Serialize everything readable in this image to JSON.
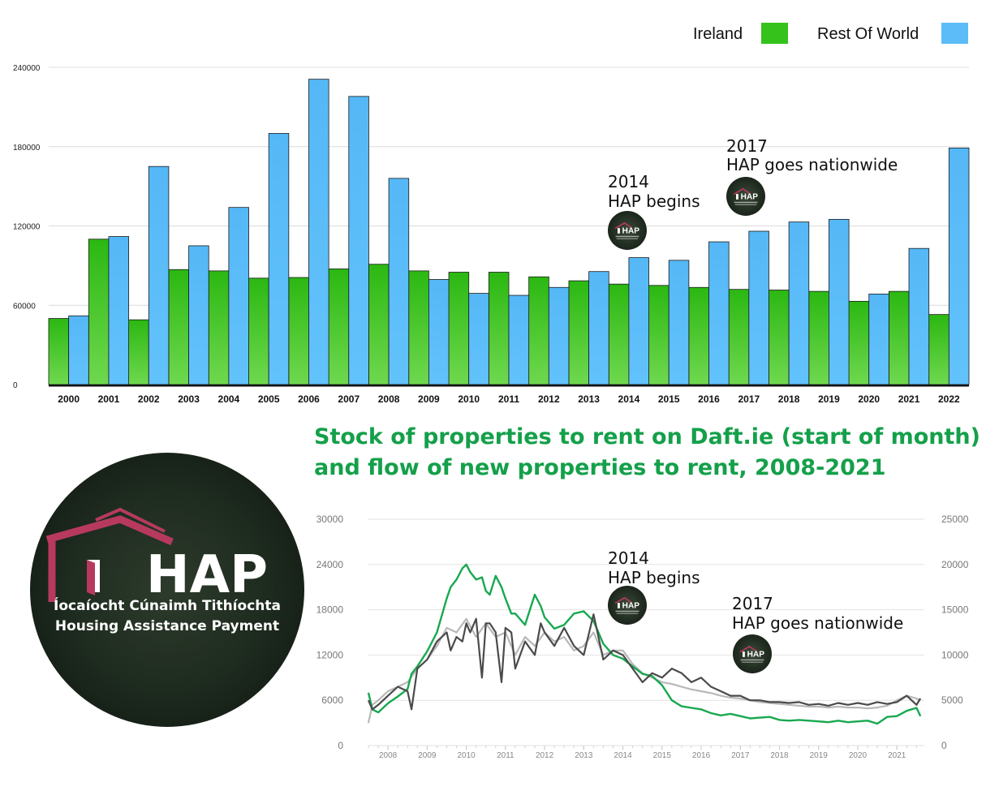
{
  "chart_data": [
    {
      "type": "bar",
      "title": "",
      "xlabel": "",
      "ylabel": "",
      "ylim": [
        0,
        240000
      ],
      "yticks": [
        0,
        60000,
        120000,
        180000,
        240000
      ],
      "grid": true,
      "legend_position": "top-right",
      "categories": [
        "2000",
        "2001",
        "2002",
        "2003",
        "2004",
        "2005",
        "2006",
        "2007",
        "2008",
        "2009",
        "2010",
        "2011",
        "2012",
        "2013",
        "2014",
        "2015",
        "2016",
        "2017",
        "2018",
        "2019",
        "2020",
        "2021",
        "2022"
      ],
      "series": [
        {
          "name": "Ireland",
          "color": "#35c21a",
          "values": [
            50000,
            110000,
            49000,
            87000,
            86000,
            80500,
            81000,
            87500,
            91000,
            86000,
            85000,
            85000,
            81500,
            78500,
            76000,
            75000,
            73500,
            72000,
            71500,
            70500,
            63000,
            70500,
            53000
          ]
        },
        {
          "name": "Rest Of World",
          "color": "#5bbcf8",
          "values": [
            52000,
            112000,
            165000,
            105000,
            134000,
            190000,
            231000,
            218000,
            156000,
            79500,
            69000,
            67500,
            73500,
            85500,
            96000,
            94000,
            108000,
            116000,
            123000,
            125000,
            68500,
            103000,
            179000
          ]
        }
      ],
      "annotations": [
        {
          "year_label": "2014",
          "text": "HAP begins",
          "category": "2014"
        },
        {
          "year_label": "2017",
          "text": "HAP goes nationwide",
          "category": "2017"
        }
      ]
    },
    {
      "type": "line",
      "title": "Stock of properties to rent on Daft.ie (start of month) and flow of new properties to rent, 2008-2021",
      "xlabel": "",
      "ylabel": "",
      "xlim": [
        2007.5,
        2021.7
      ],
      "ylim": [
        0,
        30000
      ],
      "ylim_right": [
        0,
        25000
      ],
      "yticks": [
        0,
        6000,
        12000,
        18000,
        24000,
        30000
      ],
      "yticks_right": [
        0,
        5000,
        10000,
        15000,
        20000,
        25000
      ],
      "xticks": [
        "2008",
        "2009",
        "2010",
        "2011",
        "2012",
        "2013",
        "2014",
        "2015",
        "2016",
        "2017",
        "2018",
        "2019",
        "2020",
        "2021"
      ],
      "grid": true,
      "series": [
        {
          "name": "",
          "color": "#18a850",
          "axis": "left",
          "x": [
            2007.5,
            2007.6,
            2007.75,
            2008.0,
            2008.25,
            2008.5,
            2008.6,
            2008.75,
            2009.0,
            2009.25,
            2009.5,
            2009.6,
            2009.75,
            2009.9,
            2010.0,
            2010.1,
            2010.25,
            2010.4,
            2010.5,
            2010.6,
            2010.75,
            2010.9,
            2011.0,
            2011.15,
            2011.25,
            2011.5,
            2011.75,
            2011.9,
            2012.0,
            2012.25,
            2012.5,
            2012.75,
            2013.0,
            2013.25,
            2013.5,
            2013.75,
            2014.0,
            2014.25,
            2014.5,
            2014.75,
            2015.0,
            2015.25,
            2015.5,
            2015.75,
            2016.0,
            2016.25,
            2016.5,
            2016.75,
            2017.0,
            2017.25,
            2017.5,
            2017.75,
            2018.0,
            2018.25,
            2018.5,
            2018.75,
            2019.0,
            2019.25,
            2019.5,
            2019.75,
            2020.0,
            2020.25,
            2020.5,
            2020.75,
            2021.0,
            2021.25,
            2021.5,
            2021.6
          ],
          "y": [
            7000,
            4800,
            4400,
            5600,
            6500,
            7500,
            9500,
            10500,
            12500,
            15000,
            19500,
            21000,
            22000,
            23500,
            24000,
            23000,
            22000,
            22300,
            20500,
            20000,
            22500,
            21000,
            19500,
            17500,
            17500,
            16000,
            20000,
            18500,
            17000,
            15500,
            16000,
            17500,
            17800,
            16500,
            13500,
            12000,
            11500,
            10500,
            9500,
            9200,
            8000,
            6000,
            5200,
            5000,
            4800,
            4300,
            4000,
            4200,
            3900,
            3600,
            3700,
            3800,
            3400,
            3300,
            3400,
            3300,
            3200,
            3100,
            3300,
            3100,
            3200,
            3300,
            2900,
            3800,
            3900,
            4600,
            5000,
            3900
          ]
        },
        {
          "name": "",
          "color": "#4a4a4a",
          "axis": "right",
          "x": [
            2007.5,
            2007.6,
            2007.75,
            2008.0,
            2008.25,
            2008.5,
            2008.6,
            2008.75,
            2009.0,
            2009.25,
            2009.5,
            2009.6,
            2009.75,
            2009.9,
            2010.0,
            2010.1,
            2010.25,
            2010.4,
            2010.5,
            2010.6,
            2010.75,
            2010.9,
            2011.0,
            2011.15,
            2011.25,
            2011.5,
            2011.75,
            2011.9,
            2012.0,
            2012.25,
            2012.5,
            2012.75,
            2013.0,
            2013.25,
            2013.5,
            2013.75,
            2014.0,
            2014.25,
            2014.5,
            2014.75,
            2015.0,
            2015.25,
            2015.5,
            2015.75,
            2016.0,
            2016.25,
            2016.5,
            2016.75,
            2017.0,
            2017.25,
            2017.5,
            2017.75,
            2018.0,
            2018.25,
            2018.5,
            2018.75,
            2019.0,
            2019.25,
            2019.5,
            2019.75,
            2020.0,
            2020.25,
            2020.5,
            2020.75,
            2021.0,
            2021.25,
            2021.5,
            2021.6
          ],
          "y": [
            5000,
            4000,
            4500,
            5500,
            6500,
            6000,
            4000,
            8500,
            9500,
            11500,
            12500,
            10500,
            12000,
            11500,
            13500,
            12500,
            14000,
            7500,
            13500,
            13500,
            12500,
            7000,
            13000,
            12500,
            8500,
            11500,
            10000,
            13500,
            12500,
            11000,
            13000,
            11000,
            10000,
            14500,
            9500,
            10500,
            10000,
            8500,
            7000,
            8000,
            7500,
            8500,
            8000,
            7000,
            7500,
            6500,
            6000,
            5500,
            5500,
            5000,
            5000,
            4800,
            4800,
            4700,
            4800,
            4500,
            4600,
            4400,
            4700,
            4500,
            4700,
            4500,
            4800,
            4600,
            4800,
            5500,
            4500,
            5200
          ]
        },
        {
          "name": "",
          "color": "#b8b8b8",
          "axis": "right",
          "x": [
            2007.5,
            2007.6,
            2007.75,
            2008.0,
            2008.25,
            2008.5,
            2008.75,
            2009.0,
            2009.25,
            2009.5,
            2009.75,
            2010.0,
            2010.25,
            2010.5,
            2010.75,
            2011.0,
            2011.25,
            2011.5,
            2011.75,
            2012.0,
            2012.25,
            2012.5,
            2012.75,
            2013.0,
            2013.25,
            2013.5,
            2013.75,
            2014.0,
            2014.25,
            2014.5,
            2014.75,
            2015.0,
            2015.25,
            2015.5,
            2015.75,
            2016.0,
            2016.25,
            2016.5,
            2016.75,
            2017.0,
            2017.25,
            2017.5,
            2017.75,
            2018.0,
            2018.25,
            2018.5,
            2018.75,
            2019.0,
            2019.25,
            2019.5,
            2019.75,
            2020.0,
            2020.25,
            2020.5,
            2020.75,
            2021.0,
            2021.25,
            2021.5,
            2021.6
          ],
          "y": [
            2500,
            4500,
            5000,
            6000,
            6500,
            7000,
            8500,
            9500,
            11000,
            13000,
            12500,
            14000,
            12000,
            13500,
            12000,
            12500,
            10000,
            12000,
            11000,
            12500,
            11500,
            12000,
            10500,
            11000,
            12500,
            10000,
            10500,
            10500,
            9000,
            8000,
            7500,
            7000,
            6800,
            6500,
            6200,
            6000,
            5800,
            5500,
            5300,
            5200,
            5000,
            4800,
            4700,
            4600,
            4500,
            4400,
            4300,
            4300,
            4200,
            4300,
            4200,
            4200,
            4100,
            4200,
            4400,
            5000,
            5500,
            5200,
            5000
          ]
        }
      ],
      "annotations": [
        {
          "year_label": "2014",
          "text": "HAP begins",
          "x": 2014
        },
        {
          "year_label": "2017",
          "text": "HAP goes nationwide",
          "x": 2017
        }
      ]
    }
  ],
  "badge": {
    "text": "HAP"
  },
  "logo": {
    "mark": "HAP",
    "line1": "Íocaíocht Cúnaimh Tithíochta",
    "line2": "Housing Assistance Payment",
    "house_color": "#b73a5e",
    "bg_color": "#1d2a1f"
  }
}
